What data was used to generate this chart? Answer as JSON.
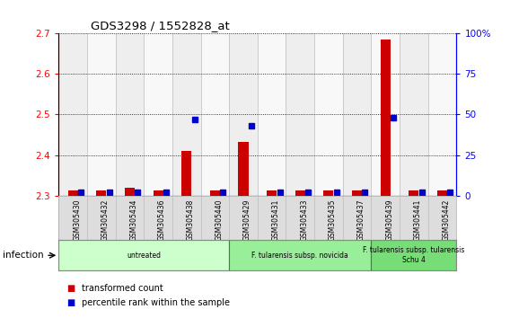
{
  "title": "GDS3298 / 1552828_at",
  "samples": [
    "GSM305430",
    "GSM305432",
    "GSM305434",
    "GSM305436",
    "GSM305438",
    "GSM305440",
    "GSM305429",
    "GSM305431",
    "GSM305433",
    "GSM305435",
    "GSM305437",
    "GSM305439",
    "GSM305441",
    "GSM305442"
  ],
  "red_values": [
    2.312,
    2.312,
    2.32,
    2.312,
    2.41,
    2.312,
    2.432,
    2.312,
    2.312,
    2.312,
    2.312,
    2.685,
    2.312,
    2.312
  ],
  "blue_values": [
    2.0,
    2.0,
    2.0,
    2.0,
    47.0,
    2.0,
    43.0,
    2.0,
    2.0,
    2.0,
    2.0,
    48.0,
    2.0,
    2.0
  ],
  "ylim_left": [
    2.3,
    2.7
  ],
  "ylim_right": [
    0,
    100
  ],
  "yticks_left": [
    2.3,
    2.4,
    2.5,
    2.6,
    2.7
  ],
  "yticks_right": [
    0,
    25,
    50,
    75,
    100
  ],
  "ytick_labels_right": [
    "0",
    "25",
    "50",
    "75",
    "100%"
  ],
  "groups": [
    {
      "label": "untreated",
      "start": 0,
      "end": 6,
      "color": "#ccffcc"
    },
    {
      "label": "F. tularensis subsp. novicida",
      "start": 6,
      "end": 11,
      "color": "#99ee99"
    },
    {
      "label": "F. tularensis subsp. tularensis\nSchu 4",
      "start": 11,
      "end": 14,
      "color": "#77dd77"
    }
  ],
  "red_bar_width": 0.35,
  "blue_marker_size": 4.5,
  "red_color": "#cc0000",
  "blue_color": "#0000cc",
  "col_bg_even": "#eeeeee",
  "col_bg_odd": "#f8f8f8",
  "infection_label": "infection",
  "legend_red": "transformed count",
  "legend_blue": "percentile rank within the sample"
}
